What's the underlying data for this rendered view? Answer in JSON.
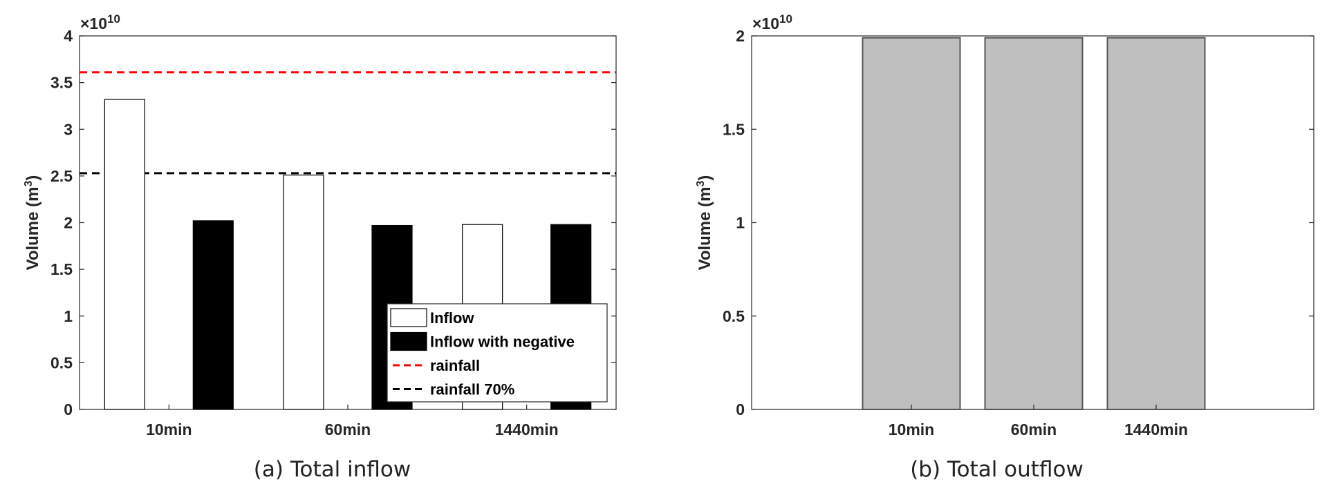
{
  "chart_data": [
    {
      "type": "bar",
      "caption": "(a) Total inflow",
      "ylabel": "Volume (m",
      "ylabel_sup": "3",
      "ylabel_end": ")",
      "exponent_label": "×10",
      "exponent_power": "10",
      "ylim": [
        0,
        4
      ],
      "yticks": [
        "0",
        "0.5",
        "1",
        "1.5",
        "2",
        "2.5",
        "3",
        "3.5",
        "4"
      ],
      "categories": [
        "10min",
        "60min",
        "1440min"
      ],
      "series": [
        {
          "name": "Inflow",
          "values": [
            3.32,
            2.51,
            1.98
          ],
          "fill": "#ffffff",
          "stroke": "#000000"
        },
        {
          "name": "Inflow with negative",
          "values": [
            2.02,
            1.97,
            1.98
          ],
          "fill": "#000000",
          "stroke": "#000000"
        }
      ],
      "reference_lines": [
        {
          "name": "rainfall",
          "value": 3.61,
          "color": "#ff0000"
        },
        {
          "name": "rainfall 70%",
          "value": 2.53,
          "color": "#000000"
        }
      ],
      "legend_position": "bottom-right",
      "grid": false
    },
    {
      "type": "bar",
      "caption": "(b) Total outflow",
      "ylabel": "Volume (m",
      "ylabel_sup": "3",
      "ylabel_end": ")",
      "exponent_label": "×10",
      "exponent_power": "10",
      "ylim": [
        0,
        2
      ],
      "yticks": [
        "0",
        "0.5",
        "1",
        "1.5",
        "2"
      ],
      "categories": [
        "10min",
        "60min",
        "1440min"
      ],
      "series": [
        {
          "values": [
            1.99,
            1.99,
            1.99
          ],
          "fill": "#bfbfbf",
          "stroke": "#555555"
        }
      ],
      "grid": false
    }
  ]
}
